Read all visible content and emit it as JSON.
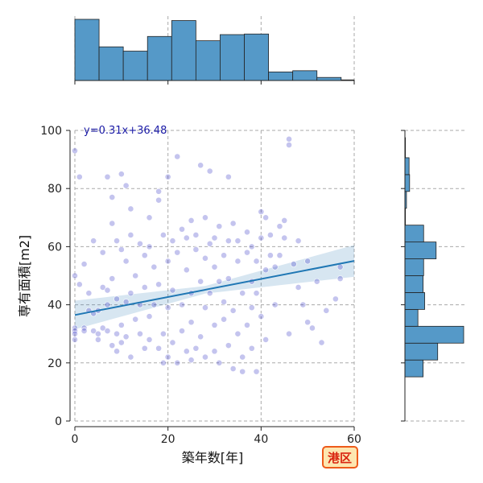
{
  "chart_data": {
    "type": "scatter",
    "xlabel": "築年数[年]",
    "ylabel": "専有面積[m2]",
    "xlim": [
      0,
      60
    ],
    "ylim": [
      0,
      100
    ],
    "xticks": [
      "0",
      "20",
      "40",
      "60"
    ],
    "yticks": [
      "0",
      "20",
      "40",
      "60",
      "80",
      "100"
    ],
    "grid": true,
    "regression": {
      "slope": 0.31,
      "intercept": 36.48,
      "label": "y=0.31x+36.48",
      "line_color": "#1f77b4"
    },
    "point_color": "#3c3cc8",
    "hist_color": "#5599c8",
    "badge": {
      "text": "港区",
      "fill": "#fde6b0",
      "border": "#ee5a1a",
      "text_color": "#d9230f"
    },
    "x_histogram": {
      "bin_edges": [
        0,
        5.2,
        10.4,
        15.6,
        20.8,
        26,
        31.2,
        36.4,
        41.6,
        46.8,
        52,
        57.2,
        62.4
      ],
      "counts": [
        100,
        55,
        48,
        72,
        98,
        65,
        75,
        76,
        14,
        16,
        5,
        1
      ]
    },
    "y_histogram": {
      "bin_edges": [
        15.2,
        21,
        26.8,
        32.6,
        38.4,
        44.2,
        50,
        55.8,
        61.6,
        67.4,
        73.2,
        79,
        84.8,
        90.6,
        97.5
      ],
      "counts": [
        35,
        63,
        113,
        25,
        38,
        35,
        36,
        60,
        36,
        1,
        3,
        9,
        8,
        1
      ]
    },
    "points": [
      [
        0,
        93
      ],
      [
        0,
        50
      ],
      [
        0,
        32
      ],
      [
        0,
        31
      ],
      [
        0,
        30
      ],
      [
        0,
        28
      ],
      [
        1,
        84
      ],
      [
        1,
        47
      ],
      [
        2,
        54
      ],
      [
        2,
        32
      ],
      [
        2,
        31
      ],
      [
        3,
        44
      ],
      [
        3,
        38
      ],
      [
        4,
        31
      ],
      [
        4,
        37
      ],
      [
        4,
        62
      ],
      [
        5,
        30
      ],
      [
        5,
        28
      ],
      [
        5,
        38
      ],
      [
        6,
        32
      ],
      [
        6,
        58
      ],
      [
        6,
        46
      ],
      [
        7,
        40
      ],
      [
        7,
        31
      ],
      [
        7,
        45
      ],
      [
        7,
        84
      ],
      [
        8,
        77
      ],
      [
        8,
        68
      ],
      [
        8,
        49
      ],
      [
        8,
        26
      ],
      [
        9,
        62
      ],
      [
        9,
        42
      ],
      [
        9,
        30
      ],
      [
        9,
        24
      ],
      [
        10,
        27
      ],
      [
        10,
        59
      ],
      [
        10,
        33
      ],
      [
        10,
        85
      ],
      [
        11,
        81
      ],
      [
        11,
        41
      ],
      [
        11,
        29
      ],
      [
        11,
        55
      ],
      [
        12,
        22
      ],
      [
        12,
        44
      ],
      [
        12,
        64
      ],
      [
        12,
        73
      ],
      [
        13,
        35
      ],
      [
        13,
        50
      ],
      [
        14,
        30
      ],
      [
        14,
        61
      ],
      [
        14,
        40
      ],
      [
        15,
        57
      ],
      [
        15,
        25
      ],
      [
        15,
        46
      ],
      [
        16,
        70
      ],
      [
        16,
        36
      ],
      [
        16,
        60
      ],
      [
        16,
        28
      ],
      [
        17,
        40
      ],
      [
        17,
        53
      ],
      [
        18,
        79
      ],
      [
        18,
        76
      ],
      [
        18,
        25
      ],
      [
        18,
        47
      ],
      [
        19,
        64
      ],
      [
        19,
        30
      ],
      [
        19,
        20
      ],
      [
        20,
        84
      ],
      [
        20,
        39
      ],
      [
        20,
        55
      ],
      [
        20,
        22
      ],
      [
        21,
        62
      ],
      [
        21,
        45
      ],
      [
        21,
        27
      ],
      [
        22,
        91
      ],
      [
        22,
        58
      ],
      [
        22,
        20
      ],
      [
        23,
        66
      ],
      [
        23,
        40
      ],
      [
        23,
        31
      ],
      [
        24,
        24
      ],
      [
        24,
        52
      ],
      [
        24,
        63
      ],
      [
        25,
        69
      ],
      [
        25,
        34
      ],
      [
        25,
        44
      ],
      [
        25,
        21
      ],
      [
        26,
        59
      ],
      [
        26,
        64
      ],
      [
        26,
        25
      ],
      [
        27,
        88
      ],
      [
        27,
        48
      ],
      [
        27,
        29
      ],
      [
        28,
        70
      ],
      [
        28,
        56
      ],
      [
        28,
        39
      ],
      [
        28,
        22
      ],
      [
        29,
        86
      ],
      [
        29,
        61
      ],
      [
        29,
        44
      ],
      [
        30,
        63
      ],
      [
        30,
        24
      ],
      [
        30,
        53
      ],
      [
        30,
        33
      ],
      [
        31,
        48
      ],
      [
        31,
        67
      ],
      [
        31,
        20
      ],
      [
        32,
        35
      ],
      [
        32,
        57
      ],
      [
        32,
        41
      ],
      [
        33,
        84
      ],
      [
        33,
        62
      ],
      [
        33,
        26
      ],
      [
        33,
        49
      ],
      [
        34,
        18
      ],
      [
        34,
        68
      ],
      [
        34,
        38
      ],
      [
        35,
        55
      ],
      [
        35,
        30
      ],
      [
        35,
        62
      ],
      [
        36,
        44
      ],
      [
        36,
        17
      ],
      [
        36,
        22
      ],
      [
        37,
        58
      ],
      [
        37,
        65
      ],
      [
        37,
        33
      ],
      [
        38,
        48
      ],
      [
        38,
        39
      ],
      [
        38,
        25
      ],
      [
        38,
        60
      ],
      [
        39,
        55
      ],
      [
        39,
        17
      ],
      [
        39,
        44
      ],
      [
        40,
        72
      ],
      [
        40,
        63
      ],
      [
        40,
        36
      ],
      [
        41,
        28
      ],
      [
        41,
        52
      ],
      [
        41,
        70
      ],
      [
        42,
        57
      ],
      [
        42,
        64
      ],
      [
        43,
        53
      ],
      [
        43,
        40
      ],
      [
        44,
        67
      ],
      [
        44,
        57
      ],
      [
        45,
        69
      ],
      [
        45,
        63
      ],
      [
        46,
        97
      ],
      [
        46,
        95
      ],
      [
        46,
        30
      ],
      [
        47,
        54
      ],
      [
        48,
        46
      ],
      [
        48,
        62
      ],
      [
        49,
        40
      ],
      [
        50,
        34
      ],
      [
        50,
        55
      ],
      [
        51,
        32
      ],
      [
        52,
        48
      ],
      [
        53,
        27
      ],
      [
        54,
        38
      ],
      [
        56,
        42
      ],
      [
        57,
        53
      ],
      [
        57,
        49
      ]
    ]
  }
}
